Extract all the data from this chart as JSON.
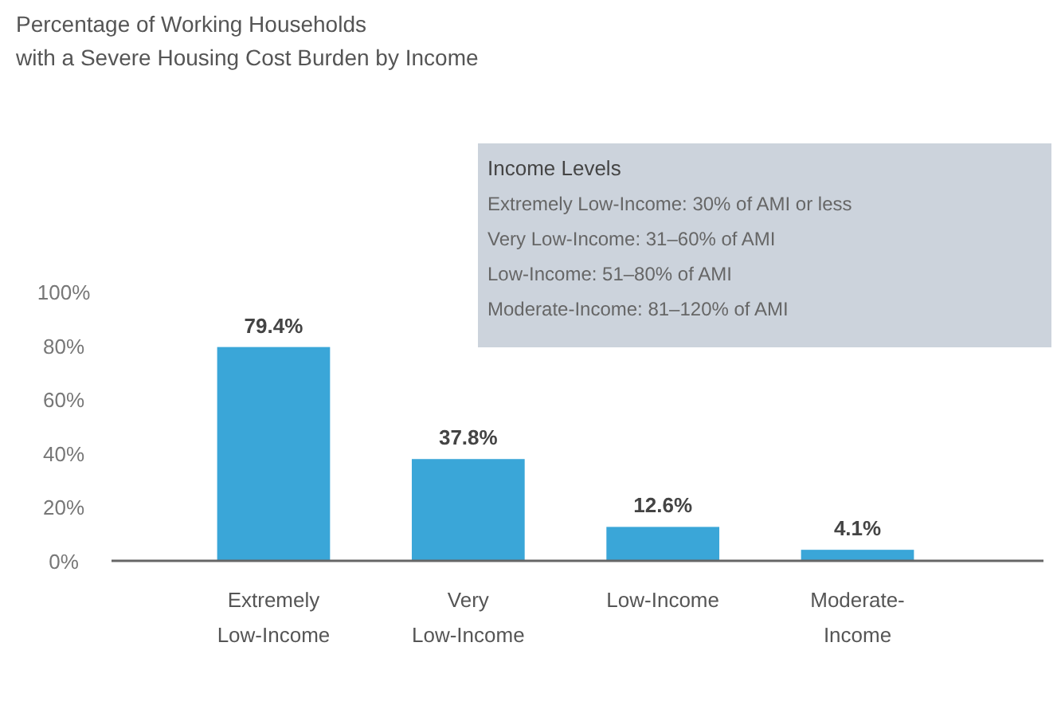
{
  "chart_data": {
    "type": "bar",
    "title": "Percentage of Working Households\nwith a Severe Housing Cost Burden by Income",
    "categories": [
      "Extremely\nLow-Income",
      "Very\nLow-Income",
      "Low-Income",
      "Moderate-\nIncome"
    ],
    "values": [
      79.4,
      37.8,
      12.6,
      4.1
    ],
    "color": "#3aa6d8",
    "value_labels": [
      "79.4%",
      "37.8%",
      "12.6%",
      "4.1%"
    ],
    "ylim": [
      0,
      100
    ],
    "yticks": [
      {
        "value": 0,
        "label": "0%"
      },
      {
        "value": 20,
        "label": "20%"
      },
      {
        "value": 40,
        "label": "40%"
      },
      {
        "value": 60,
        "label": "60%"
      },
      {
        "value": 80,
        "label": "80%"
      },
      {
        "value": 100,
        "label": "100%"
      }
    ],
    "annotations": [
      "Income Levels",
      "Extremely Low-Income: 30% of AMI or less",
      "Very Low-Income: 31–60% of AMI",
      "Low-Income: 51–80% of AMI",
      "Moderate-Income: 81–120% of AMI"
    ]
  }
}
